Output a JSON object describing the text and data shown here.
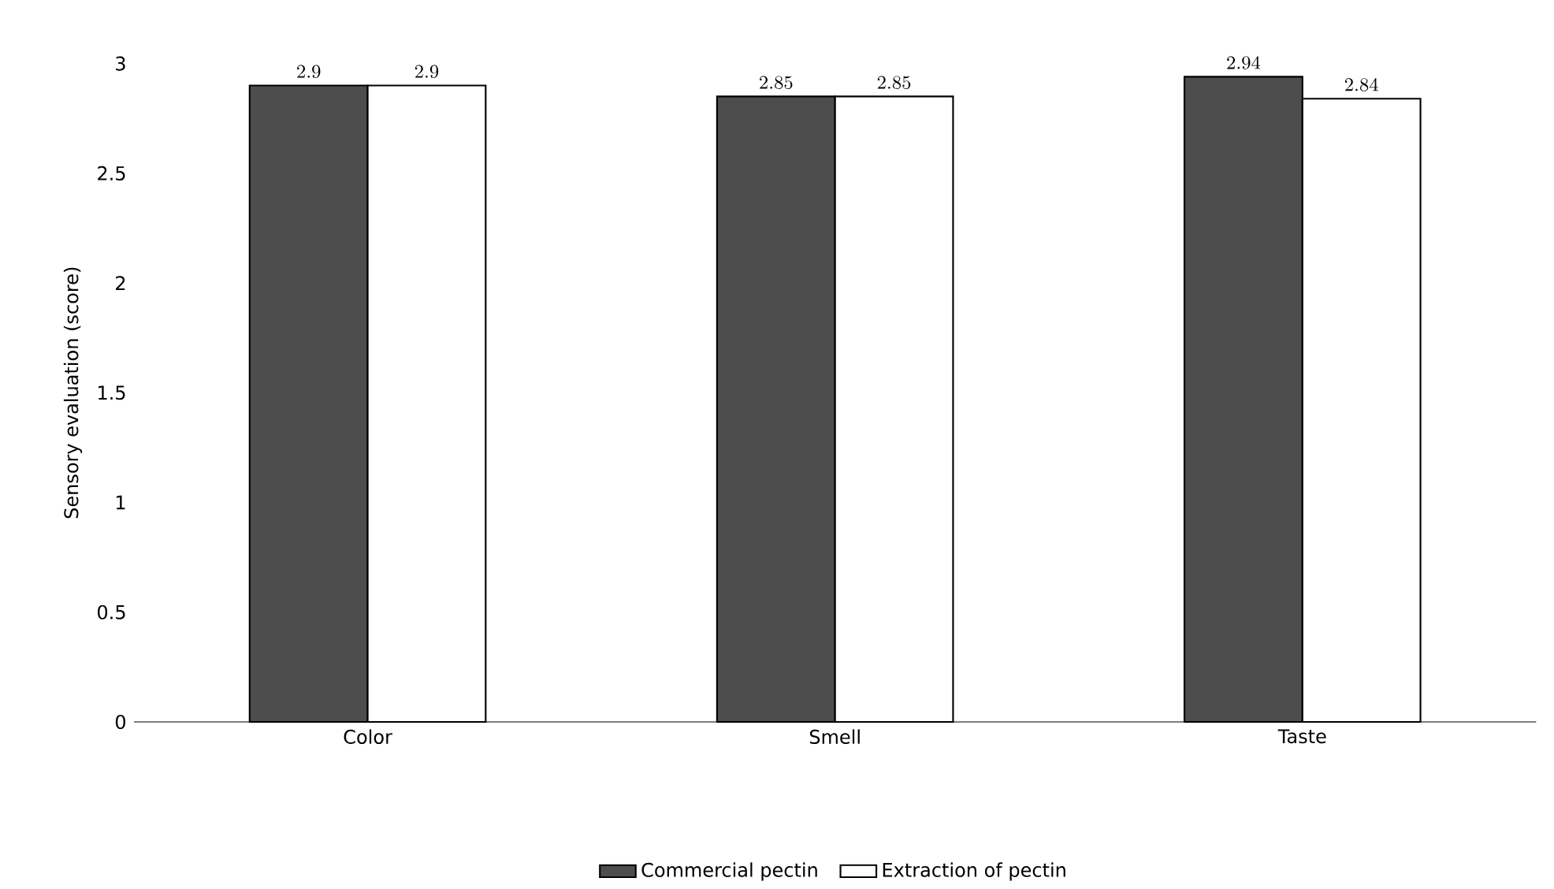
{
  "chart_data": {
    "type": "bar",
    "ylabel": "Sensory evaluation (score)",
    "categories": [
      "Color",
      "Smell",
      "Taste"
    ],
    "series": [
      {
        "name": "Commercial pectin",
        "color": "#4d4d4d",
        "values": [
          2.9,
          2.85,
          2.94
        ]
      },
      {
        "name": "Extraction of pectin",
        "color": "#ffffff",
        "values": [
          2.9,
          2.85,
          2.84
        ]
      }
    ],
    "ylim": [
      0,
      3
    ],
    "yticks": [
      0,
      0.5,
      1,
      1.5,
      2,
      2.5,
      3
    ],
    "data_labels": true,
    "legend": "bottom",
    "grid": false
  }
}
